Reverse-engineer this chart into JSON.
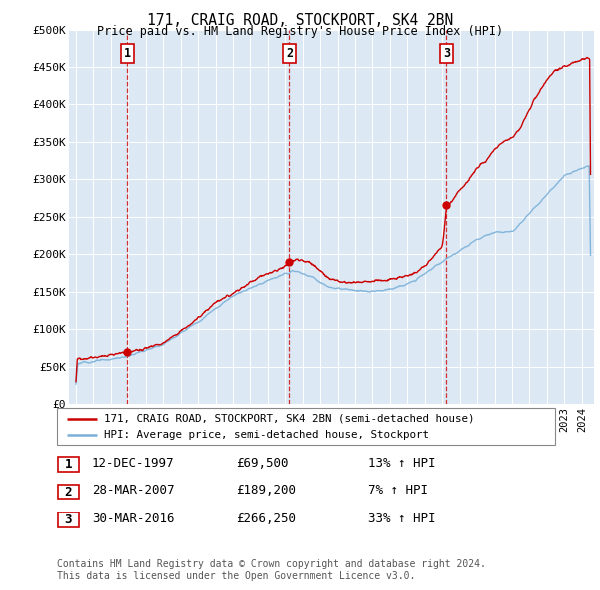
{
  "title": "171, CRAIG ROAD, STOCKPORT, SK4 2BN",
  "subtitle": "Price paid vs. HM Land Registry's House Price Index (HPI)",
  "ylim": [
    0,
    500000
  ],
  "yticks": [
    0,
    50000,
    100000,
    150000,
    200000,
    250000,
    300000,
    350000,
    400000,
    450000,
    500000
  ],
  "ytick_labels": [
    "£0",
    "£50K",
    "£100K",
    "£150K",
    "£200K",
    "£250K",
    "£300K",
    "£350K",
    "£400K",
    "£450K",
    "£500K"
  ],
  "bg_color": "#dce9f5",
  "hpi_color": "#7ab0d8",
  "sale_color": "#cc0000",
  "sale_points": [
    {
      "date": 1997.95,
      "price": 69500,
      "label": "1"
    },
    {
      "date": 2007.24,
      "price": 189200,
      "label": "2"
    },
    {
      "date": 2016.24,
      "price": 266250,
      "label": "3"
    }
  ],
  "vline_color": "#cc0000",
  "legend_sale": "171, CRAIG ROAD, STOCKPORT, SK4 2BN (semi-detached house)",
  "legend_hpi": "HPI: Average price, semi-detached house, Stockport",
  "table_rows": [
    {
      "num": "1",
      "date": "12-DEC-1997",
      "price": "£69,500",
      "hpi": "13% ↑ HPI"
    },
    {
      "num": "2",
      "date": "28-MAR-2007",
      "price": "£189,200",
      "hpi": "7% ↑ HPI"
    },
    {
      "num": "3",
      "date": "30-MAR-2016",
      "price": "£266,250",
      "hpi": "33% ↑ HPI"
    }
  ],
  "footer": "Contains HM Land Registry data © Crown copyright and database right 2024.\nThis data is licensed under the Open Government Licence v3.0.",
  "xmin": 1994.6,
  "xmax": 2024.7
}
